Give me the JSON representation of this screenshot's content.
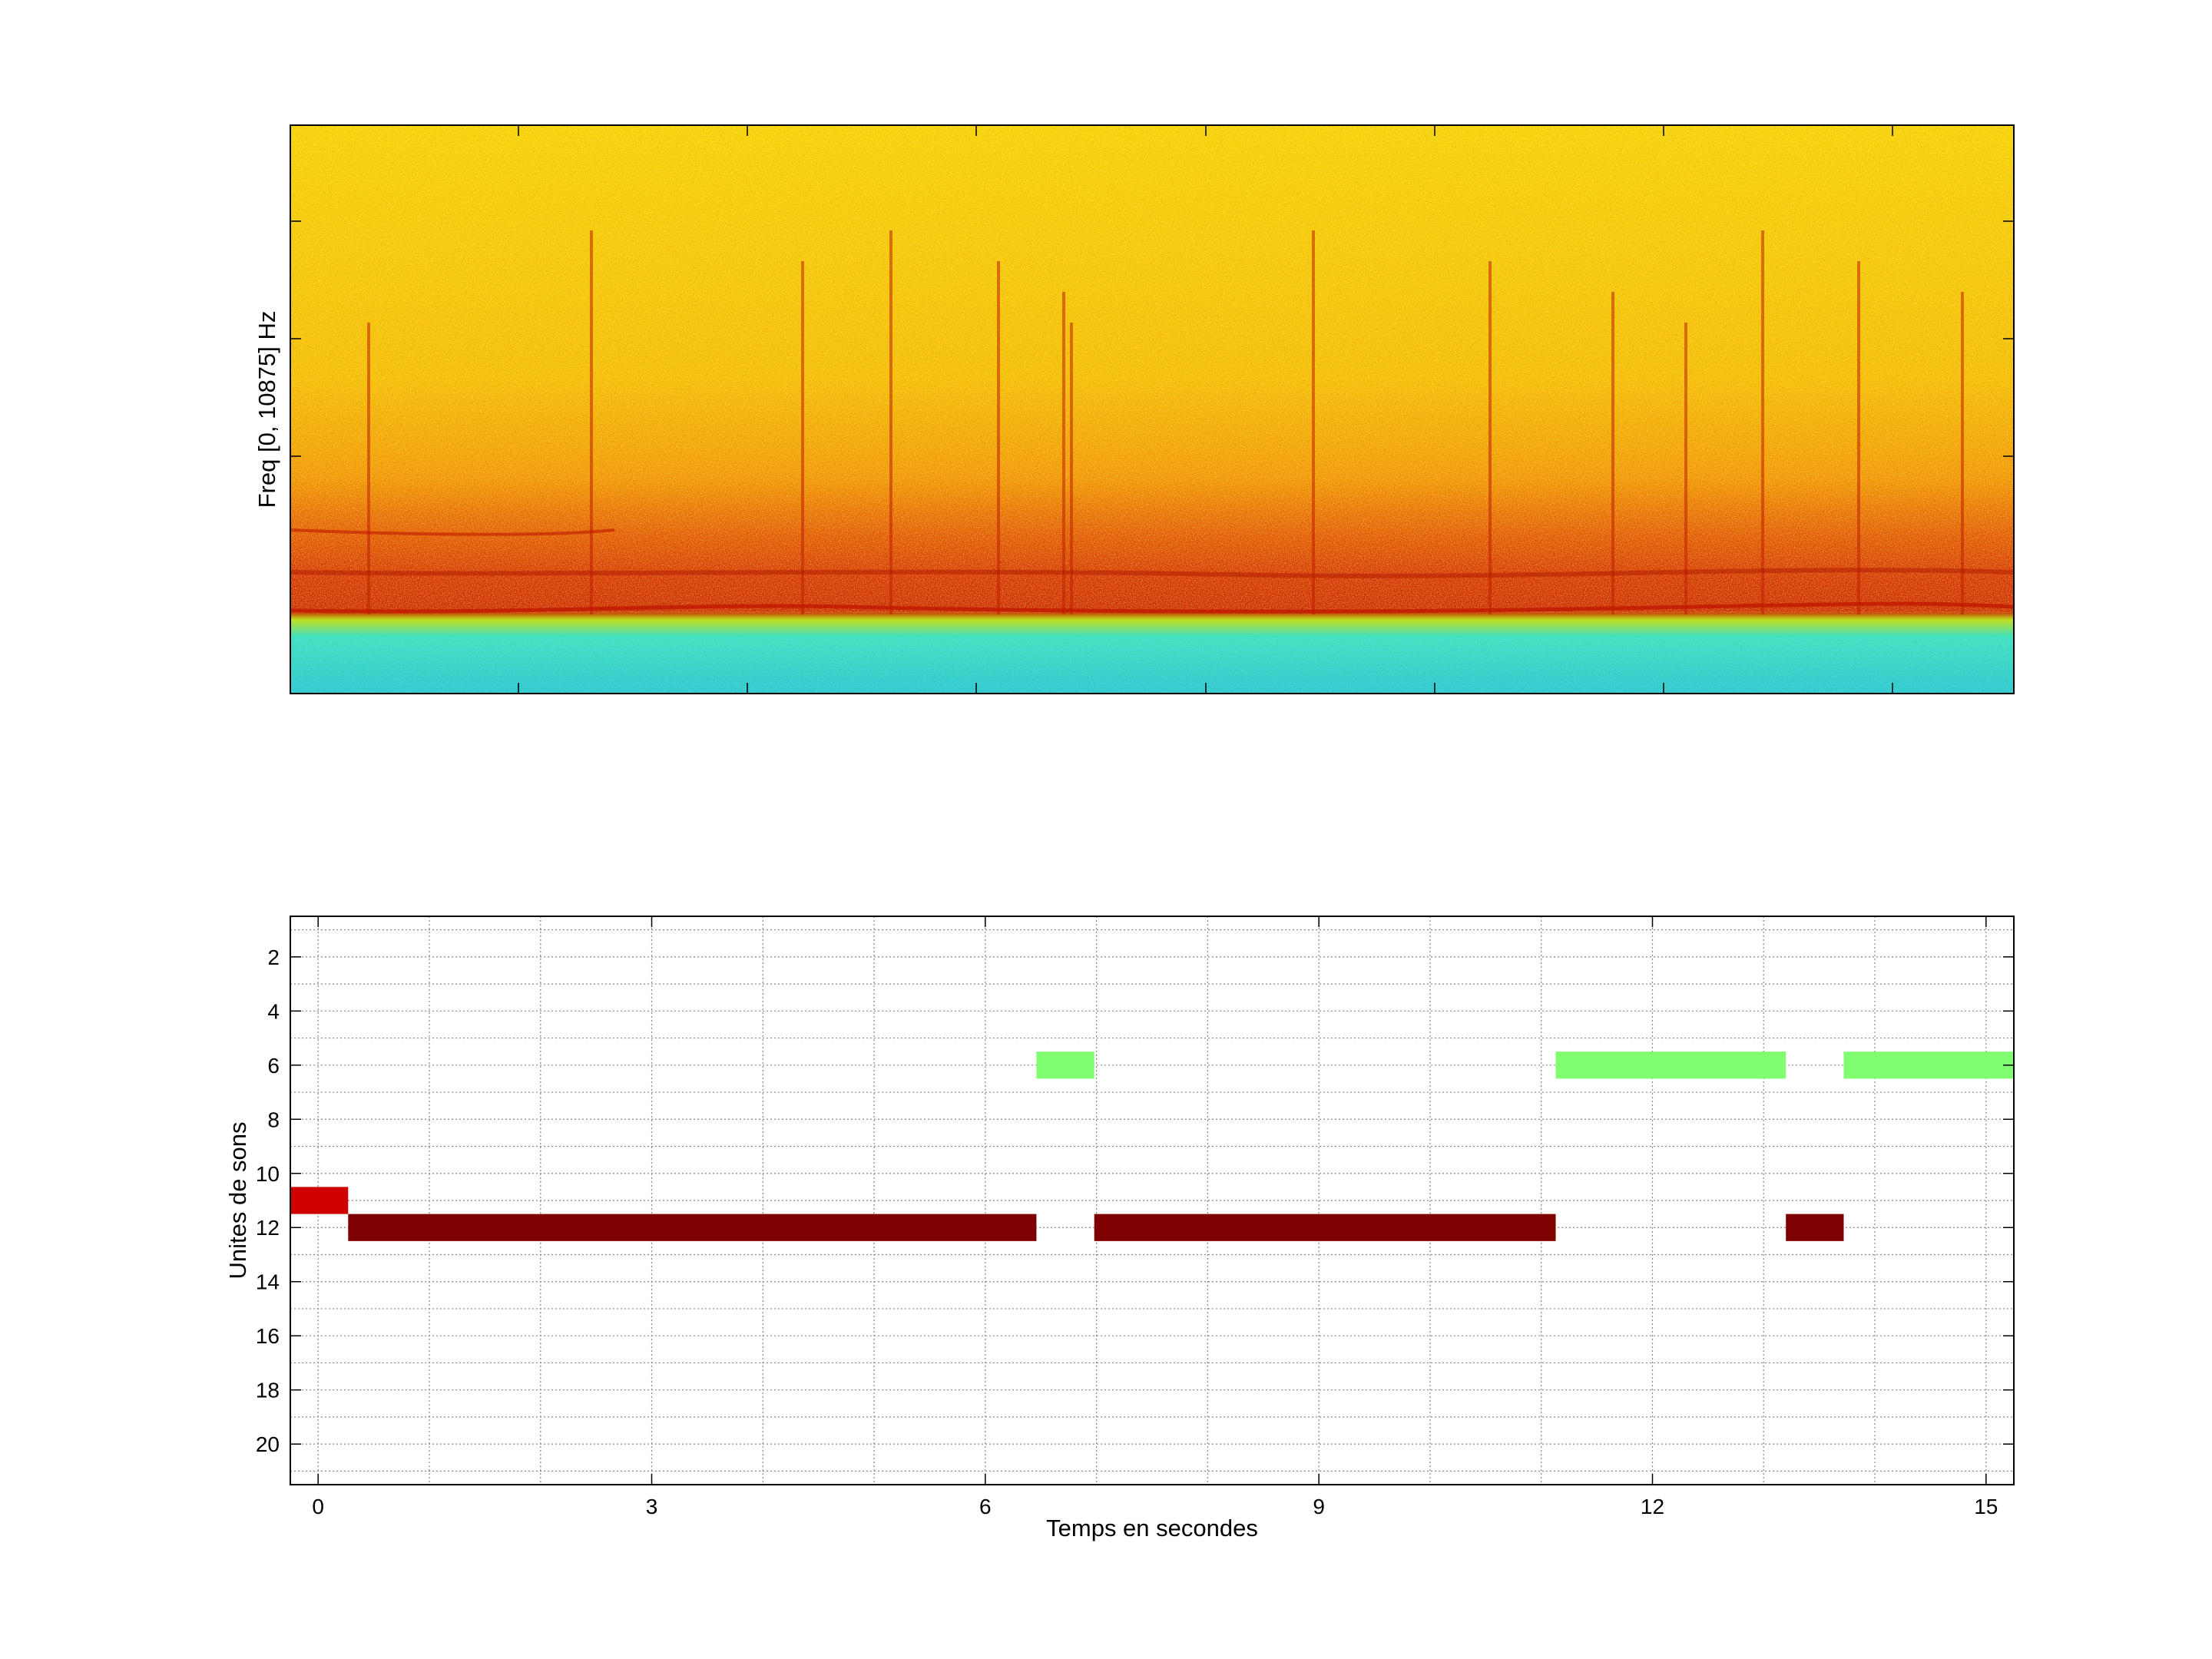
{
  "chart_data": [
    {
      "type": "heatmap",
      "ylabel": "Freq [0, 10875] Hz",
      "xlabel": "",
      "title": "",
      "colormap": "jet",
      "x_ticks_shown": false,
      "y_ticks_shown": false,
      "description_colors": {
        "background_noise": "#f0c000",
        "low_band": "#30e0c0",
        "energy_band": "#d02000"
      }
    },
    {
      "type": "bar",
      "orientation": "horizontal",
      "title": "",
      "xlabel": "Temps en secondes",
      "ylabel": "Unites de sons",
      "xlim": [
        -0.25,
        15.25
      ],
      "ylim": [
        21.5,
        0.5
      ],
      "y_reversed": true,
      "grid": true,
      "xticks": [
        0,
        3,
        6,
        9,
        12,
        15
      ],
      "yticks": [
        2,
        4,
        6,
        8,
        10,
        12,
        14,
        16,
        18,
        20
      ],
      "segments": [
        {
          "unit": 11,
          "start": -0.25,
          "end": 0.27,
          "color": "#d00000"
        },
        {
          "unit": 12,
          "start": 0.27,
          "end": 6.46,
          "color": "#7f0000"
        },
        {
          "unit": 6,
          "start": 6.46,
          "end": 6.98,
          "color": "#80ff70"
        },
        {
          "unit": 12,
          "start": 6.98,
          "end": 11.13,
          "color": "#7f0000"
        },
        {
          "unit": 6,
          "start": 11.13,
          "end": 13.2,
          "color": "#80ff70"
        },
        {
          "unit": 12,
          "start": 13.2,
          "end": 13.72,
          "color": "#7f0000"
        },
        {
          "unit": 6,
          "start": 13.72,
          "end": 15.25,
          "color": "#80ff70"
        }
      ]
    }
  ]
}
